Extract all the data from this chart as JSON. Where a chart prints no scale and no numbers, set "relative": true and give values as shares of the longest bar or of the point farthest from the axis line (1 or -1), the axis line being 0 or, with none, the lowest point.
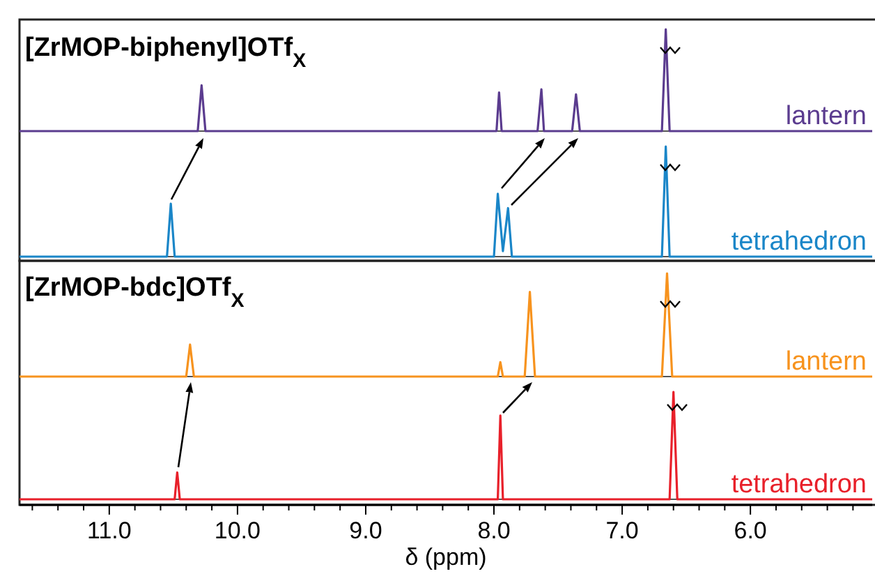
{
  "chart_data": [
    {
      "type": "line",
      "title": "[ZrMOP-biphenyl]OTf$_{X}$",
      "relative": true,
      "xlim": [
        11.7,
        5.05
      ],
      "tick_labels": false,
      "series": [
        {
          "name": "lantern",
          "color": "#5b3c8f",
          "x": [
            11.7,
            10.31,
            10.28,
            10.25,
            7.98,
            7.96,
            7.94,
            7.66,
            7.63,
            7.61,
            7.39,
            7.36,
            7.33,
            6.69,
            6.66,
            6.63,
            5.05
          ],
          "values": [
            0,
            0,
            0.45,
            0,
            0,
            0.38,
            0,
            0,
            0.41,
            0,
            0,
            0.36,
            0,
            0,
            1,
            0,
            0
          ]
        }
      ]
    },
    {
      "type": "line",
      "relative": true,
      "xlim": [
        11.7,
        5.05
      ],
      "tick_labels": false,
      "series": [
        {
          "name": "tetrahedron",
          "color": "#1a86c8",
          "x": [
            11.7,
            10.55,
            10.52,
            10.49,
            8.0,
            7.97,
            7.93,
            7.89,
            7.86,
            6.69,
            6.66,
            6.63,
            5.05
          ],
          "values": [
            0,
            0,
            0.48,
            0,
            0,
            0.57,
            0.05,
            0.44,
            0,
            0,
            1,
            0,
            0
          ]
        }
      ]
    },
    {
      "type": "line",
      "title": "[ZrMOP-bdc]OTf$_{X}$",
      "relative": true,
      "xlim": [
        11.7,
        5.05
      ],
      "tick_labels": false,
      "series": [
        {
          "name": "lantern",
          "color": "#f7931e",
          "x": [
            11.7,
            10.4,
            10.37,
            10.34,
            7.97,
            7.95,
            7.93,
            7.76,
            7.72,
            7.68,
            6.69,
            6.65,
            6.61,
            5.05
          ],
          "values": [
            0,
            0,
            0.31,
            0,
            0,
            0.14,
            0,
            0,
            0.82,
            0,
            0,
            1,
            0,
            0
          ]
        }
      ]
    },
    {
      "type": "line",
      "xlabel": "δ (ppm)",
      "relative": true,
      "xlim": [
        11.7,
        5.05
      ],
      "tick_labels": "x",
      "xticks": [
        {
          "value": 11.6,
          "label": null
        },
        {
          "value": 11.4,
          "label": null
        },
        {
          "value": 11.2,
          "label": null
        },
        {
          "value": 11,
          "label": "11.0"
        },
        {
          "value": 10.8,
          "label": null
        },
        {
          "value": 10.6,
          "label": null
        },
        {
          "value": 10.4,
          "label": null
        },
        {
          "value": 10.2,
          "label": null
        },
        {
          "value": 10,
          "label": "10.0"
        },
        {
          "value": 9.8,
          "label": null
        },
        {
          "value": 9.6,
          "label": null
        },
        {
          "value": 9.4,
          "label": null
        },
        {
          "value": 9.2,
          "label": null
        },
        {
          "value": 9,
          "label": "9.0"
        },
        {
          "value": 8.8,
          "label": null
        },
        {
          "value": 8.6,
          "label": null
        },
        {
          "value": 8.4,
          "label": null
        },
        {
          "value": 8.2,
          "label": null
        },
        {
          "value": 8,
          "label": "8.0"
        },
        {
          "value": 7.8,
          "label": null
        },
        {
          "value": 7.6,
          "label": null
        },
        {
          "value": 7.4,
          "label": null
        },
        {
          "value": 7.2,
          "label": null
        },
        {
          "value": 7,
          "label": "7.0"
        },
        {
          "value": 6.8,
          "label": null
        },
        {
          "value": 6.6,
          "label": null
        },
        {
          "value": 6.4,
          "label": null
        },
        {
          "value": 6.2,
          "label": null
        },
        {
          "value": 6,
          "label": "6.0"
        },
        {
          "value": 5.8,
          "label": null
        },
        {
          "value": 5.6,
          "label": null
        },
        {
          "value": 5.4,
          "label": null
        },
        {
          "value": 5.2,
          "label": null
        }
      ],
      "series": [
        {
          "name": "tetrahedron",
          "color": "#e8202a",
          "x": [
            11.7,
            10.49,
            10.47,
            10.45,
            7.97,
            7.95,
            7.93,
            6.63,
            6.6,
            6.57,
            5.05
          ],
          "values": [
            0,
            0,
            0.25,
            0,
            0,
            0.78,
            0,
            0,
            1,
            0,
            0
          ]
        }
      ]
    }
  ]
}
